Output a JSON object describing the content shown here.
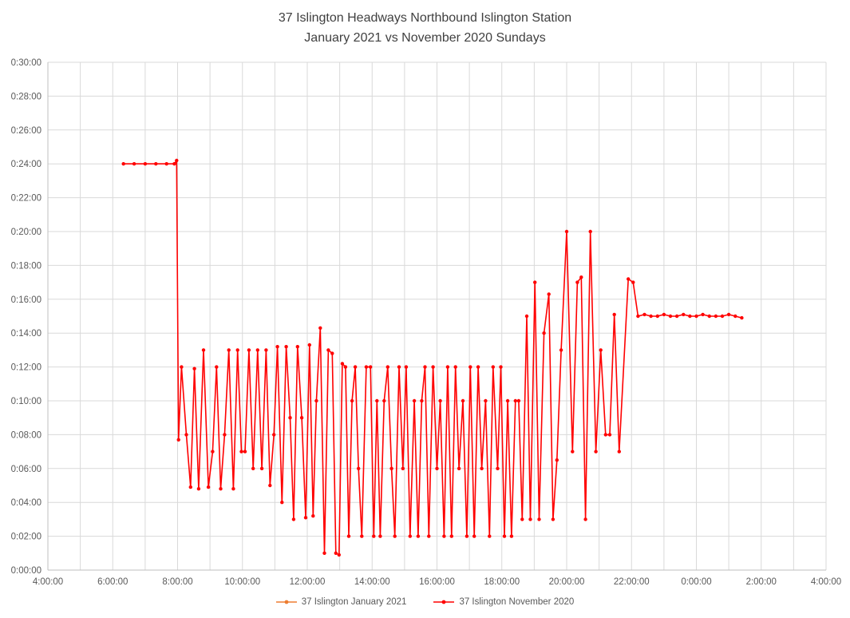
{
  "title": {
    "line1": "37 Islington Headways Northbound Islington Station",
    "line2": "January 2021 vs November 2020 Sundays"
  },
  "legend": [
    {
      "label": "37 Islington January 2021",
      "color": "#ED7D31"
    },
    {
      "label": "37 Islington November 2020",
      "color": "#FF0000"
    }
  ],
  "colors": {
    "gridline": "#D9D9D9",
    "axis_line": "#BFBFBF",
    "axis_text": "#595959",
    "title_text": "#404040",
    "background": "#FFFFFF"
  },
  "chart_data": {
    "type": "line",
    "title": "37 Islington Headways Northbound Islington Station January 2021 vs November 2020 Sundays",
    "xlabel": "",
    "ylabel": "",
    "grid": true,
    "legend_position": "bottom",
    "x_axis": {
      "unit": "time of day (hours, service day 4:00 to 28:00)",
      "range_hours": [
        4,
        28
      ],
      "tick_hours": [
        4,
        6,
        8,
        10,
        12,
        14,
        16,
        18,
        20,
        22,
        24,
        26,
        28
      ],
      "tick_labels": [
        "4:00:00",
        "6:00:00",
        "8:00:00",
        "10:00:00",
        "12:00:00",
        "14:00:00",
        "16:00:00",
        "18:00:00",
        "20:00:00",
        "22:00:00",
        "0:00:00",
        "2:00:00",
        "4:00:00"
      ],
      "gridline_every_hours": 1
    },
    "y_axis": {
      "unit": "headway (h:mm:ss)",
      "range_minutes": [
        0,
        30
      ],
      "tick_minutes": [
        0,
        2,
        4,
        6,
        8,
        10,
        12,
        14,
        16,
        18,
        20,
        22,
        24,
        26,
        28,
        30
      ],
      "tick_labels": [
        "0:00:00",
        "0:02:00",
        "0:04:00",
        "0:06:00",
        "0:08:00",
        "0:10:00",
        "0:12:00",
        "0:14:00",
        "0:16:00",
        "0:18:00",
        "0:20:00",
        "0:22:00",
        "0:24:00",
        "0:26:00",
        "0:28:00",
        "0:30:00"
      ]
    },
    "series": [
      {
        "name": "37 Islington January 2021",
        "color": "#ED7D31",
        "points": []
      },
      {
        "name": "37 Islington November 2020",
        "color": "#FF0000",
        "points": [
          [
            6.33,
            24
          ],
          [
            6.66,
            24
          ],
          [
            7.0,
            24
          ],
          [
            7.33,
            24
          ],
          [
            7.66,
            24
          ],
          [
            7.9,
            24
          ],
          [
            7.97,
            24.2
          ],
          [
            8.03,
            7.7
          ],
          [
            8.12,
            12
          ],
          [
            8.27,
            8
          ],
          [
            8.4,
            4.9
          ],
          [
            8.52,
            11.9
          ],
          [
            8.65,
            4.8
          ],
          [
            8.8,
            13
          ],
          [
            8.95,
            4.9
          ],
          [
            9.08,
            7
          ],
          [
            9.2,
            12
          ],
          [
            9.33,
            4.8
          ],
          [
            9.45,
            8
          ],
          [
            9.58,
            13
          ],
          [
            9.72,
            4.8
          ],
          [
            9.85,
            13
          ],
          [
            9.97,
            7
          ],
          [
            10.08,
            7
          ],
          [
            10.2,
            13
          ],
          [
            10.33,
            6
          ],
          [
            10.47,
            13
          ],
          [
            10.6,
            6
          ],
          [
            10.73,
            13
          ],
          [
            10.85,
            5
          ],
          [
            10.97,
            8
          ],
          [
            11.08,
            13.2
          ],
          [
            11.22,
            4
          ],
          [
            11.35,
            13.2
          ],
          [
            11.47,
            9
          ],
          [
            11.58,
            3
          ],
          [
            11.7,
            13.2
          ],
          [
            11.83,
            9
          ],
          [
            11.95,
            3.1
          ],
          [
            12.07,
            13.3
          ],
          [
            12.18,
            3.2
          ],
          [
            12.28,
            10
          ],
          [
            12.4,
            14.3
          ],
          [
            12.53,
            1
          ],
          [
            12.65,
            13
          ],
          [
            12.77,
            12.8
          ],
          [
            12.88,
            1
          ],
          [
            12.98,
            0.9
          ],
          [
            13.08,
            12.2
          ],
          [
            13.18,
            12
          ],
          [
            13.28,
            2
          ],
          [
            13.38,
            10
          ],
          [
            13.48,
            12
          ],
          [
            13.58,
            6
          ],
          [
            13.68,
            2
          ],
          [
            13.82,
            12
          ],
          [
            13.95,
            12
          ],
          [
            14.05,
            2
          ],
          [
            14.15,
            10
          ],
          [
            14.25,
            2
          ],
          [
            14.37,
            10
          ],
          [
            14.48,
            12
          ],
          [
            14.6,
            6
          ],
          [
            14.7,
            2
          ],
          [
            14.83,
            12
          ],
          [
            14.95,
            6
          ],
          [
            15.05,
            12
          ],
          [
            15.17,
            2
          ],
          [
            15.3,
            10
          ],
          [
            15.42,
            2
          ],
          [
            15.53,
            10
          ],
          [
            15.63,
            12
          ],
          [
            15.75,
            2
          ],
          [
            15.88,
            12
          ],
          [
            16.0,
            6
          ],
          [
            16.1,
            10
          ],
          [
            16.22,
            2
          ],
          [
            16.33,
            12
          ],
          [
            16.45,
            2
          ],
          [
            16.57,
            12
          ],
          [
            16.68,
            6
          ],
          [
            16.8,
            10
          ],
          [
            16.92,
            2
          ],
          [
            17.03,
            12
          ],
          [
            17.15,
            2
          ],
          [
            17.27,
            12
          ],
          [
            17.38,
            6
          ],
          [
            17.5,
            10
          ],
          [
            17.62,
            2
          ],
          [
            17.73,
            12
          ],
          [
            17.87,
            6
          ],
          [
            17.97,
            12
          ],
          [
            18.08,
            2
          ],
          [
            18.18,
            10
          ],
          [
            18.3,
            2
          ],
          [
            18.42,
            10
          ],
          [
            18.52,
            10
          ],
          [
            18.63,
            3
          ],
          [
            18.77,
            15
          ],
          [
            18.88,
            3
          ],
          [
            19.02,
            17
          ],
          [
            19.15,
            3
          ],
          [
            19.3,
            14
          ],
          [
            19.45,
            16.3
          ],
          [
            19.58,
            3
          ],
          [
            19.7,
            6.5
          ],
          [
            19.83,
            13
          ],
          [
            20.0,
            20
          ],
          [
            20.18,
            7
          ],
          [
            20.33,
            17
          ],
          [
            20.45,
            17.3
          ],
          [
            20.58,
            3
          ],
          [
            20.73,
            20
          ],
          [
            20.9,
            7
          ],
          [
            21.05,
            13
          ],
          [
            21.2,
            8
          ],
          [
            21.33,
            8
          ],
          [
            21.47,
            15.1
          ],
          [
            21.62,
            7
          ],
          [
            21.9,
            17.2
          ],
          [
            22.05,
            17
          ],
          [
            22.2,
            15
          ],
          [
            22.4,
            15.1
          ],
          [
            22.6,
            15
          ],
          [
            22.8,
            15
          ],
          [
            23.0,
            15.1
          ],
          [
            23.2,
            15
          ],
          [
            23.4,
            15
          ],
          [
            23.6,
            15.1
          ],
          [
            23.8,
            15
          ],
          [
            24.0,
            15
          ],
          [
            24.2,
            15.1
          ],
          [
            24.4,
            15
          ],
          [
            24.6,
            15
          ],
          [
            24.8,
            15
          ],
          [
            25.0,
            15.1
          ],
          [
            25.2,
            15
          ],
          [
            25.4,
            14.9
          ]
        ]
      }
    ]
  }
}
